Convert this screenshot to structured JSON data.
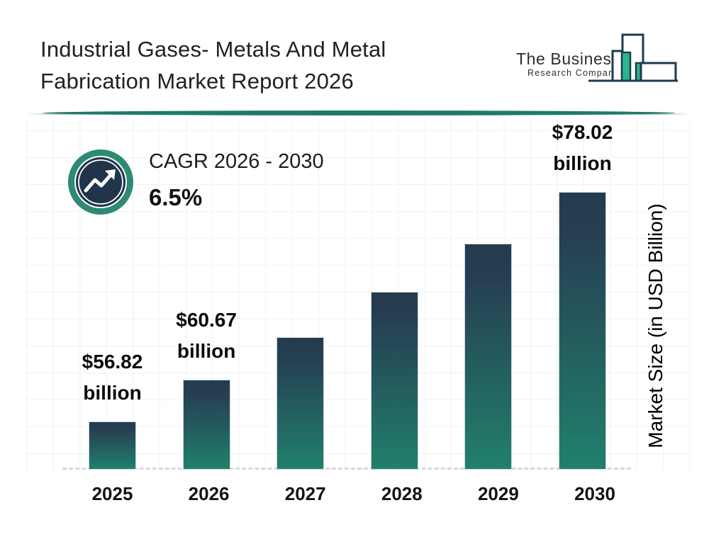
{
  "header": {
    "title_line1": "Industrial Gases- Metals And Metal",
    "title_line2": "Fabrication Market Report 2026",
    "logo": {
      "name_line1": "The Business",
      "name_line2": "Research Company"
    }
  },
  "cagr": {
    "label": "CAGR 2026 - 2030",
    "value": "6.5%"
  },
  "chart_data": {
    "type": "bar",
    "title": "Industrial Gases- Metals And Metal Fabrication Market Report 2026",
    "categories": [
      "2025",
      "2026",
      "2027",
      "2028",
      "2029",
      "2030"
    ],
    "values": [
      56.82,
      60.67,
      64.61,
      68.81,
      73.28,
      78.02
    ],
    "data_labels": [
      "$56.82 billion",
      "$60.67 billion",
      null,
      null,
      null,
      "$78.02 billion"
    ],
    "ylabel": "Market Size (in USD Billion)",
    "xlabel": "",
    "unit": "USD Billion",
    "cagr_label": "CAGR 2026 - 2030",
    "cagr_value": "6.5%",
    "grid": "on",
    "legend": "off",
    "baseline_style": "dashed"
  },
  "colors": {
    "bar_gradient_top": "#253B4E",
    "bar_gradient_bottom": "#21806C",
    "divider_teal": "#1E7A68",
    "badge_ring": "#2E8A72",
    "badge_inner": "#20354A",
    "logo_outline": "#1C3B52",
    "logo_green": "#2BB68B",
    "grid_line": "#EEF1F3",
    "baseline_dash": "#D8D8D8",
    "text_primary": "#1F1F1F"
  }
}
